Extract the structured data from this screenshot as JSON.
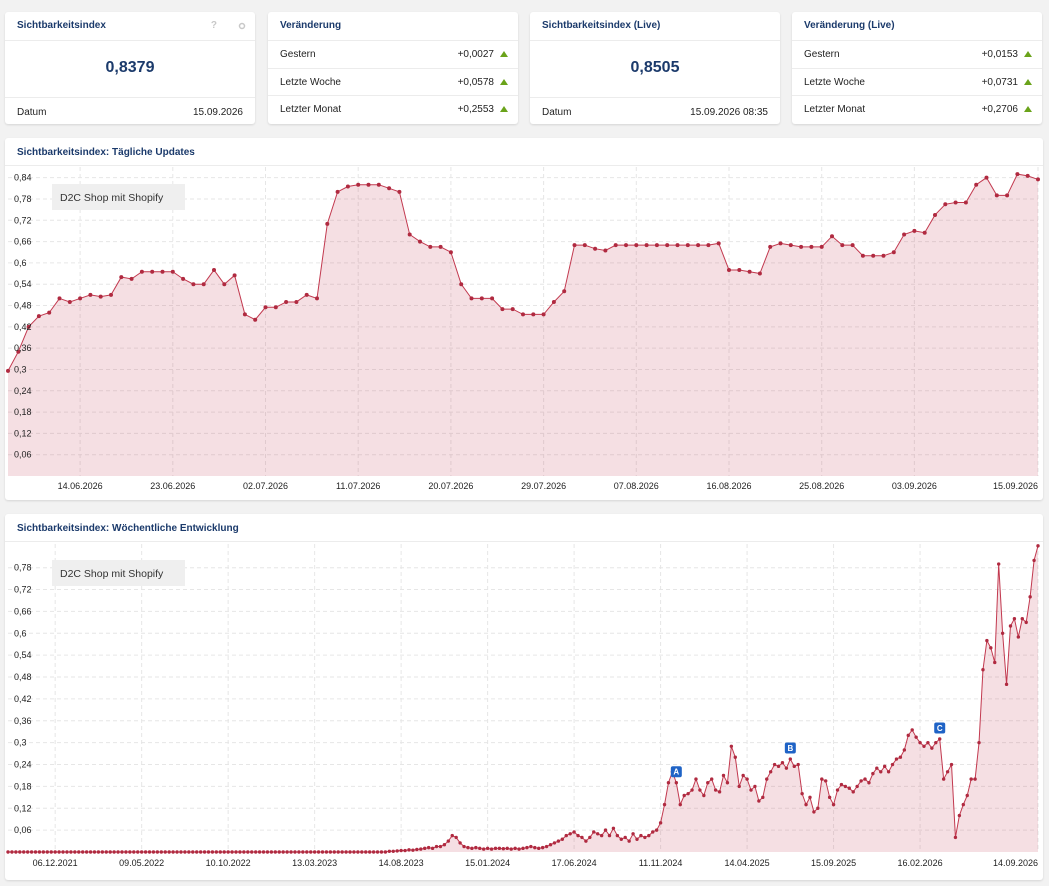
{
  "cards": [
    {
      "title": "Sichtbarkeitsindex",
      "help": "?",
      "value": "0,8379",
      "footer_label": "Datum",
      "footer_value": "15.09.2026"
    },
    {
      "title": "Veränderung",
      "rows": [
        {
          "label": "Gestern",
          "value": "+0,0027"
        },
        {
          "label": "Letzte Woche",
          "value": "+0,0578"
        },
        {
          "label": "Letzter Monat",
          "value": "+0,2553"
        }
      ]
    },
    {
      "title": "Sichtbarkeitsindex (Live)",
      "value": "0,8505",
      "footer_label": "Datum",
      "footer_value": "15.09.2026 08:35"
    },
    {
      "title": "Veränderung (Live)",
      "rows": [
        {
          "label": "Gestern",
          "value": "+0,0153"
        },
        {
          "label": "Letzte Woche",
          "value": "+0,0731"
        },
        {
          "label": "Letzter Monat",
          "value": "+0,2706"
        }
      ]
    }
  ],
  "chart_data": [
    {
      "type": "line",
      "title": "Sichtbarkeitsindex: Tägliche Updates",
      "categories": [
        null,
        null,
        null,
        null,
        null,
        null,
        null,
        "14.06.2026",
        null,
        null,
        null,
        null,
        null,
        null,
        null,
        null,
        "23.06.2026",
        null,
        null,
        null,
        null,
        null,
        null,
        null,
        null,
        "02.07.2026",
        null,
        null,
        null,
        null,
        null,
        null,
        null,
        null,
        "11.07.2026",
        null,
        null,
        null,
        null,
        null,
        null,
        null,
        null,
        "20.07.2026",
        null,
        null,
        null,
        null,
        null,
        null,
        null,
        null,
        "29.07.2026",
        null,
        null,
        null,
        null,
        null,
        null,
        null,
        null,
        "07.08.2026",
        null,
        null,
        null,
        null,
        null,
        null,
        null,
        null,
        "16.08.2026",
        null,
        null,
        null,
        null,
        null,
        null,
        null,
        null,
        "25.08.2026",
        null,
        null,
        null,
        null,
        null,
        null,
        null,
        null,
        "03.09.2026",
        null,
        null,
        null,
        null,
        null,
        null,
        null,
        null,
        null,
        null,
        null,
        "15.09.2026"
      ],
      "series": [
        {
          "name": "D2C Shop mit Shopify",
          "color": "#c2394f",
          "values": [
            0.296,
            0.35,
            0.42,
            0.45,
            0.46,
            0.5,
            0.49,
            0.5,
            0.51,
            0.505,
            0.51,
            0.56,
            0.555,
            0.575,
            0.575,
            0.575,
            0.575,
            0.555,
            0.54,
            0.54,
            0.58,
            0.54,
            0.565,
            0.455,
            0.44,
            0.475,
            0.475,
            0.49,
            0.49,
            0.51,
            0.5,
            0.71,
            0.8,
            0.815,
            0.82,
            0.82,
            0.82,
            0.81,
            0.8,
            0.68,
            0.66,
            0.645,
            0.645,
            0.63,
            0.54,
            0.5,
            0.5,
            0.5,
            0.47,
            0.47,
            0.455,
            0.455,
            0.455,
            0.49,
            0.52,
            0.65,
            0.65,
            0.64,
            0.635,
            0.65,
            0.65,
            0.65,
            0.65,
            0.65,
            0.65,
            0.65,
            0.65,
            0.65,
            0.65,
            0.655,
            0.58,
            0.58,
            0.575,
            0.57,
            0.645,
            0.655,
            0.65,
            0.645,
            0.645,
            0.645,
            0.675,
            0.65,
            0.65,
            0.62,
            0.62,
            0.62,
            0.63,
            0.68,
            0.69,
            0.685,
            0.735,
            0.765,
            0.77,
            0.77,
            0.82,
            0.84,
            0.79,
            0.79,
            0.85,
            0.845,
            0.835
          ]
        }
      ],
      "ylim": [
        0,
        0.87
      ],
      "yticks": [
        {
          "value": 0.06,
          "label": "0,06"
        },
        {
          "value": 0.12,
          "label": "0,12"
        },
        {
          "value": 0.18,
          "label": "0,18"
        },
        {
          "value": 0.24,
          "label": "0,24"
        },
        {
          "value": 0.3,
          "label": "0,3"
        },
        {
          "value": 0.36,
          "label": "0,36"
        },
        {
          "value": 0.42,
          "label": "0,42"
        },
        {
          "value": 0.48,
          "label": "0,48"
        },
        {
          "value": 0.54,
          "label": "0,54"
        },
        {
          "value": 0.6,
          "label": "0,6"
        },
        {
          "value": 0.66,
          "label": "0,66"
        },
        {
          "value": 0.72,
          "label": "0,72"
        },
        {
          "value": 0.78,
          "label": "0,78"
        },
        {
          "value": 0.84,
          "label": "0,84"
        }
      ],
      "grid": true,
      "area": true
    },
    {
      "type": "line",
      "title": "Sichtbarkeitsindex: Wöchentliche Entwicklung",
      "categories": [
        null,
        null,
        null,
        null,
        null,
        null,
        null,
        null,
        null,
        null,
        null,
        null,
        "06.12.2021",
        null,
        null,
        null,
        null,
        null,
        null,
        null,
        null,
        null,
        null,
        null,
        null,
        null,
        null,
        null,
        null,
        null,
        null,
        null,
        null,
        null,
        "09.05.2022",
        null,
        null,
        null,
        null,
        null,
        null,
        null,
        null,
        null,
        null,
        null,
        null,
        null,
        null,
        null,
        null,
        null,
        null,
        null,
        null,
        null,
        "10.10.2022",
        null,
        null,
        null,
        null,
        null,
        null,
        null,
        null,
        null,
        null,
        null,
        null,
        null,
        null,
        null,
        null,
        null,
        null,
        null,
        null,
        null,
        "13.03.2023",
        null,
        null,
        null,
        null,
        null,
        null,
        null,
        null,
        null,
        null,
        null,
        null,
        null,
        null,
        null,
        null,
        null,
        null,
        null,
        null,
        null,
        "14.08.2023",
        null,
        null,
        null,
        null,
        null,
        null,
        null,
        null,
        null,
        null,
        null,
        null,
        null,
        null,
        null,
        null,
        null,
        null,
        null,
        null,
        null,
        "15.01.2024",
        null,
        null,
        null,
        null,
        null,
        null,
        null,
        null,
        null,
        null,
        null,
        null,
        null,
        null,
        null,
        null,
        null,
        null,
        null,
        null,
        null,
        "17.06.2024",
        null,
        null,
        null,
        null,
        null,
        null,
        null,
        null,
        null,
        null,
        null,
        null,
        null,
        null,
        null,
        null,
        null,
        null,
        null,
        null,
        null,
        "11.11.2024",
        null,
        null,
        null,
        null,
        null,
        null,
        null,
        null,
        null,
        null,
        null,
        null,
        null,
        null,
        null,
        null,
        null,
        null,
        null,
        null,
        null,
        "14.04.2025",
        null,
        null,
        null,
        null,
        null,
        null,
        null,
        null,
        null,
        null,
        null,
        null,
        null,
        null,
        null,
        null,
        null,
        null,
        null,
        null,
        null,
        "15.09.2025",
        null,
        null,
        null,
        null,
        null,
        null,
        null,
        null,
        null,
        null,
        null,
        null,
        null,
        null,
        null,
        null,
        null,
        null,
        null,
        null,
        null,
        "16.02.2026",
        null,
        null,
        null,
        null,
        null,
        null,
        null,
        null,
        null,
        null,
        null,
        null,
        null,
        null,
        null,
        null,
        null,
        null,
        null,
        null,
        null,
        null,
        null,
        null,
        null,
        null,
        null,
        null,
        null,
        "14.09.2026"
      ],
      "series": [
        {
          "name": "D2C Shop mit Shopify",
          "color": "#c2394f",
          "values": [
            0,
            0,
            0,
            0,
            0,
            0,
            0,
            0,
            0,
            0,
            0,
            0,
            0,
            0,
            0,
            0,
            0,
            0,
            0,
            0,
            0,
            0,
            0,
            0,
            0,
            0,
            0,
            0,
            0,
            0,
            0,
            0,
            0,
            0,
            0,
            0,
            0,
            0,
            0,
            0,
            0,
            0,
            0,
            0,
            0,
            0,
            0,
            0,
            0,
            0,
            0,
            0,
            0,
            0,
            0,
            0,
            0,
            0,
            0,
            0,
            0,
            0,
            0,
            0,
            0,
            0,
            0,
            0,
            0,
            0,
            0,
            0,
            0,
            0,
            0,
            0,
            0,
            0,
            0,
            0,
            0,
            0,
            0,
            0,
            0,
            0,
            0,
            0,
            0,
            0,
            0,
            0,
            0,
            0,
            0,
            0,
            0,
            0.002,
            0.002,
            0.003,
            0.004,
            0.004,
            0.006,
            0.005,
            0.007,
            0.008,
            0.01,
            0.012,
            0.01,
            0.015,
            0.015,
            0.02,
            0.03,
            0.045,
            0.04,
            0.025,
            0.015,
            0.012,
            0.01,
            0.012,
            0.01,
            0.008,
            0.01,
            0.008,
            0.01,
            0.01,
            0.009,
            0.01,
            0.008,
            0.01,
            0.008,
            0.01,
            0.012,
            0.015,
            0.012,
            0.01,
            0.012,
            0.015,
            0.02,
            0.025,
            0.03,
            0.035,
            0.045,
            0.05,
            0.055,
            0.045,
            0.04,
            0.03,
            0.04,
            0.055,
            0.05,
            0.045,
            0.06,
            0.045,
            0.065,
            0.045,
            0.035,
            0.04,
            0.03,
            0.05,
            0.035,
            0.045,
            0.04,
            0.045,
            0.055,
            0.06,
            0.08,
            0.13,
            0.19,
            0.22,
            0.19,
            0.13,
            0.155,
            0.16,
            0.17,
            0.2,
            0.17,
            0.155,
            0.19,
            0.2,
            0.17,
            0.165,
            0.21,
            0.19,
            0.29,
            0.26,
            0.18,
            0.21,
            0.2,
            0.17,
            0.18,
            0.14,
            0.15,
            0.2,
            0.22,
            0.24,
            0.235,
            0.245,
            0.23,
            0.255,
            0.235,
            0.24,
            0.16,
            0.13,
            0.15,
            0.11,
            0.12,
            0.2,
            0.195,
            0.15,
            0.13,
            0.17,
            0.185,
            0.18,
            0.175,
            0.165,
            0.18,
            0.195,
            0.2,
            0.19,
            0.215,
            0.23,
            0.22,
            0.235,
            0.22,
            0.24,
            0.255,
            0.26,
            0.28,
            0.32,
            0.335,
            0.315,
            0.3,
            0.29,
            0.3,
            0.285,
            0.3,
            0.31,
            0.2,
            0.22,
            0.24,
            0.04,
            0.1,
            0.13,
            0.155,
            0.2,
            0.2,
            0.3,
            0.5,
            0.58,
            0.56,
            0.52,
            0.79,
            0.6,
            0.46,
            0.62,
            0.64,
            0.59,
            0.64,
            0.63,
            0.7,
            0.8,
            0.84
          ]
        }
      ],
      "ylim": [
        0,
        0.845
      ],
      "yticks": [
        {
          "value": 0.06,
          "label": "0,06"
        },
        {
          "value": 0.12,
          "label": "0,12"
        },
        {
          "value": 0.18,
          "label": "0,18"
        },
        {
          "value": 0.24,
          "label": "0,24"
        },
        {
          "value": 0.3,
          "label": "0,3"
        },
        {
          "value": 0.36,
          "label": "0,36"
        },
        {
          "value": 0.42,
          "label": "0,42"
        },
        {
          "value": 0.48,
          "label": "0,48"
        },
        {
          "value": 0.54,
          "label": "0,54"
        },
        {
          "value": 0.6,
          "label": "0,6"
        },
        {
          "value": 0.66,
          "label": "0,66"
        },
        {
          "value": 0.72,
          "label": "0,72"
        },
        {
          "value": 0.78,
          "label": "0,78"
        }
      ],
      "grid": true,
      "area": true,
      "annotations": [
        "A",
        "B",
        "C"
      ]
    }
  ]
}
